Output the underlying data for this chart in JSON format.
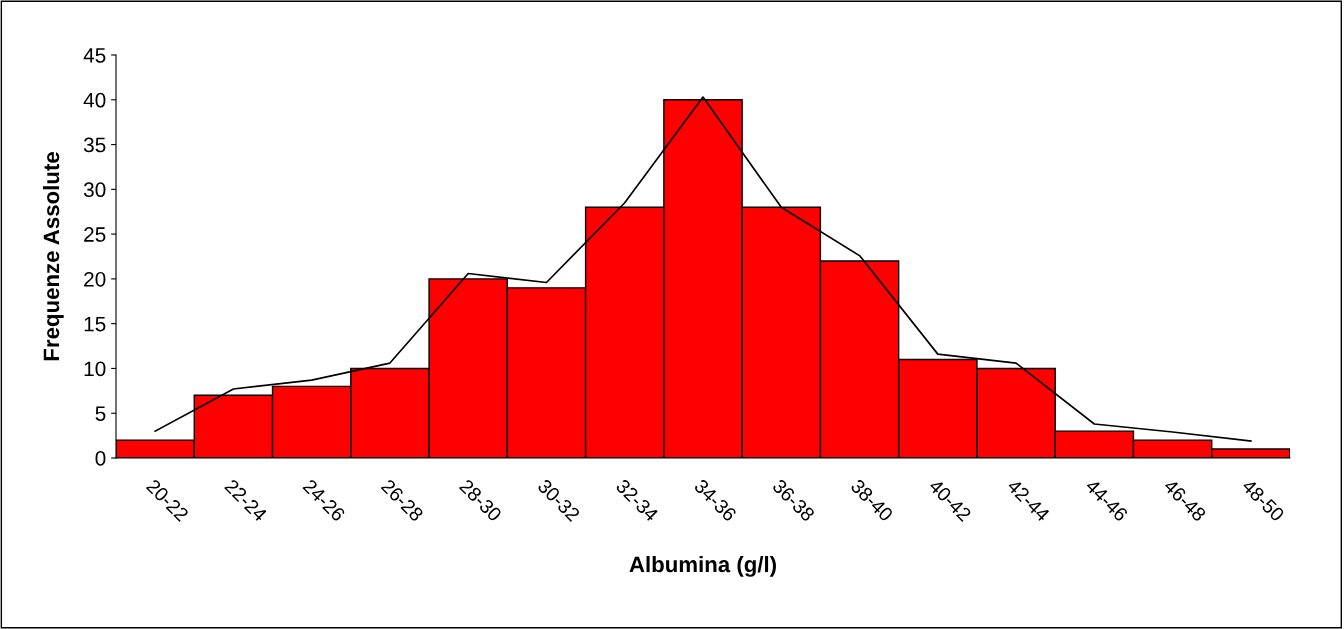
{
  "chart_data": {
    "type": "bar",
    "xlabel": "Albumina (g/l)",
    "ylabel": "Frequenze Assolute",
    "categories": [
      "20-22",
      "22-24",
      "24-26",
      "26-28",
      "28-30",
      "30-32",
      "32-34",
      "34-36",
      "36-38",
      "38-40",
      "40-42",
      "42-44",
      "44-46",
      "46-48",
      "48-50"
    ],
    "series": [
      {
        "color": "#ff0000",
        "values": [
          2,
          7,
          8,
          10,
          20,
          19,
          28,
          40,
          28,
          22,
          11,
          10,
          3,
          2,
          1
        ]
      },
      {
        "type": "line",
        "color": "#000000",
        "values": [
          3,
          7.7,
          8.7,
          10.6,
          20.6,
          19.6,
          28.5,
          40.3,
          28,
          22.6,
          11.6,
          10.6,
          3.8,
          2.9,
          1.9
        ]
      }
    ],
    "ylim": [
      0,
      45
    ],
    "yticks": [
      0,
      5,
      10,
      15,
      20,
      25,
      30,
      35,
      40,
      45
    ],
    "grid": false,
    "legend": false,
    "marker": "none",
    "line_style": "solid"
  }
}
